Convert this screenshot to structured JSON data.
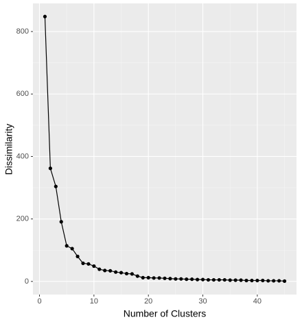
{
  "chart_data": {
    "type": "line",
    "x_label": "Number of Clusters",
    "y_label": "Dissimilarity",
    "x": [
      1,
      2,
      3,
      4,
      5,
      6,
      7,
      8,
      9,
      10,
      11,
      12,
      13,
      14,
      15,
      16,
      17,
      18,
      19,
      20,
      21,
      22,
      23,
      24,
      25,
      26,
      27,
      28,
      29,
      30,
      31,
      32,
      33,
      34,
      35,
      36,
      37,
      38,
      39,
      40,
      41,
      42,
      43,
      44,
      45
    ],
    "values": [
      848,
      362,
      304,
      191,
      114,
      105,
      80,
      58,
      56,
      49,
      39,
      35,
      34,
      30,
      28,
      25,
      24,
      17,
      12,
      12,
      11,
      11,
      10,
      9,
      8,
      8,
      7,
      7,
      6,
      6,
      5,
      5,
      5,
      5,
      4,
      4,
      4,
      3,
      3,
      3,
      3,
      2,
      2,
      2,
      1
    ],
    "color": "#000000",
    "xlim": [
      -1.2,
      47.2
    ],
    "xticks": [
      0,
      10,
      20,
      30,
      40
    ],
    "x_minor_breaks": [
      5,
      15,
      25,
      35,
      45
    ],
    "ylim": [
      -42,
      890
    ],
    "yticks": [
      0,
      200,
      400,
      600,
      800
    ],
    "y_minor_breaks": [
      100,
      300,
      500,
      700
    ],
    "grid": true
  }
}
